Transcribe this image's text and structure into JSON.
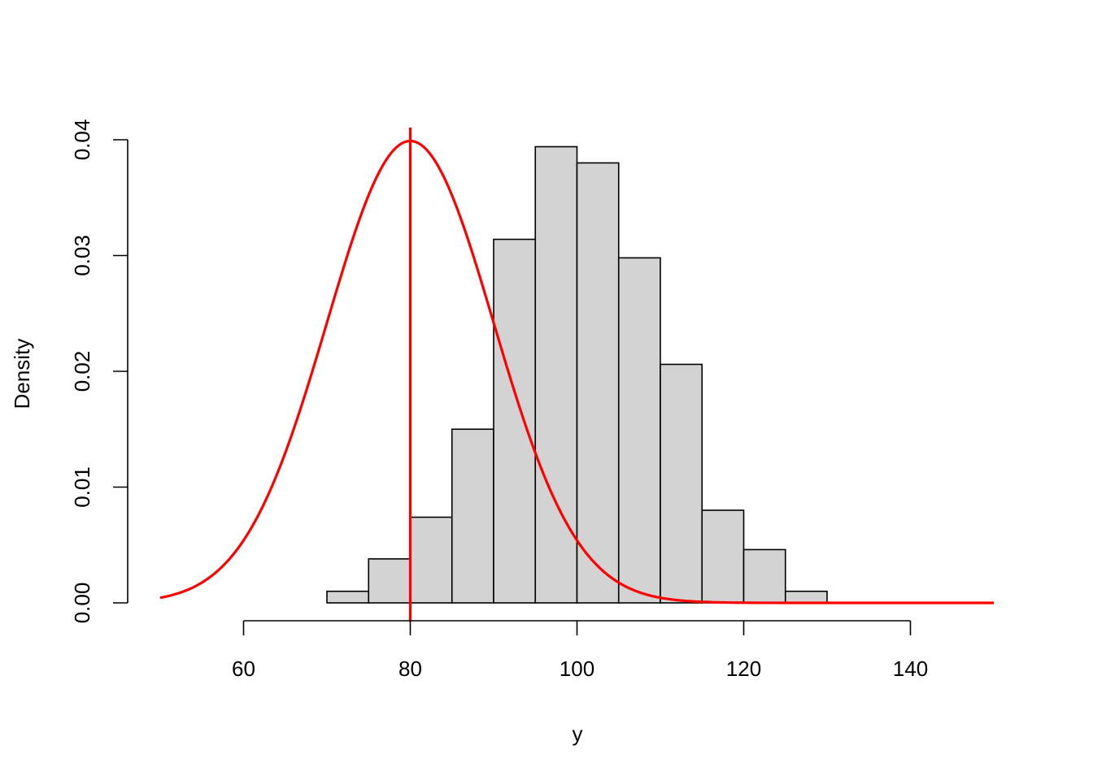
{
  "chart_data": {
    "type": "bar",
    "subtype": "histogram",
    "title": "",
    "xlabel": "y",
    "ylabel": "Density",
    "xlim": [
      50,
      150
    ],
    "ylim": [
      0,
      0.04
    ],
    "x_ticks": [
      60,
      80,
      100,
      120,
      140
    ],
    "y_ticks": [
      0.0,
      0.01,
      0.02,
      0.03,
      0.04
    ],
    "x_tick_labels": [
      "60",
      "80",
      "100",
      "120",
      "140"
    ],
    "y_tick_labels": [
      "0.00",
      "0.01",
      "0.02",
      "0.03",
      "0.04"
    ],
    "grid": false,
    "histogram": {
      "bin_edges": [
        70,
        75,
        80,
        85,
        90,
        95,
        100,
        105,
        110,
        115,
        120,
        125,
        130
      ],
      "density": [
        0.001,
        0.0038,
        0.0074,
        0.015,
        0.0314,
        0.0394,
        0.038,
        0.0298,
        0.0206,
        0.008,
        0.0046,
        0.001
      ],
      "fill_color": "#d3d3d3",
      "edge_color": "#000000"
    },
    "overlay_curve": {
      "type": "normal-density",
      "mean": 80,
      "sd": 10,
      "x_range": [
        50,
        150
      ],
      "color": "#ff0000"
    },
    "reference_line": {
      "orientation": "vertical",
      "x": 80,
      "color": "#ff0000"
    }
  }
}
